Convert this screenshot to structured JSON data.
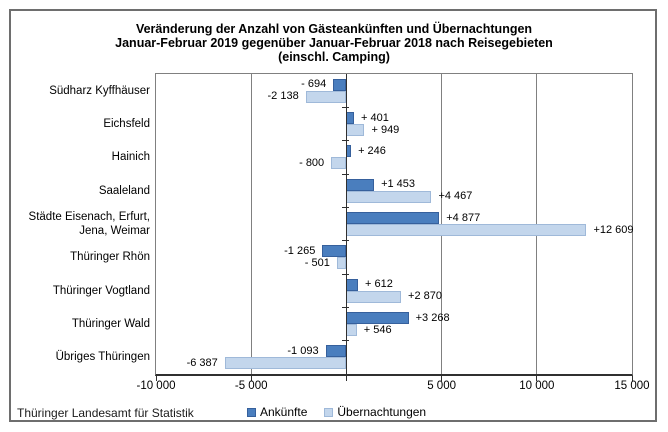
{
  "source": "Thüringer Landesamt für Statistik",
  "chart_data": {
    "type": "bar",
    "orientation": "horizontal",
    "title_lines": [
      "Veränderung der Anzahl von Gästeankünften und Übernachtungen",
      "Januar-Februar 2019 gegenüber Januar-Februar 2018 nach Reisegebieten",
      "(einschl. Camping)"
    ],
    "categories": [
      "Südharz Kyffhäuser",
      "Eichsfeld",
      "Hainich",
      "Saaleland",
      "Städte Eisenach, Erfurt,\nJena, Weimar",
      "Thüringer Rhön",
      "Thüringer Vogtland",
      "Thüringer Wald",
      "Übriges Thüringen"
    ],
    "series": [
      {
        "name": "Ankünfte",
        "color": "#4A7EBE",
        "border_color": "#36609C",
        "values": [
          -694,
          401,
          246,
          1453,
          4877,
          -1265,
          612,
          3268,
          -1093
        ],
        "data_labels": [
          "- 694",
          "+ 401",
          "+ 246",
          "+1 453",
          "+4 877",
          "-1 265",
          "+ 612",
          "+3 268",
          "-1 093"
        ]
      },
      {
        "name": "Übernachtungen",
        "color": "#C3D6EC",
        "border_color": "#9FB9D9",
        "values": [
          -2138,
          949,
          -800,
          4467,
          12609,
          -501,
          2870,
          546,
          -6387
        ],
        "data_labels": [
          "-2 138",
          "+ 949",
          "- 800",
          "+4 467",
          "+12 609",
          "- 501",
          "+2 870",
          "+ 546",
          "-6 387"
        ]
      }
    ],
    "xlim": [
      -10000,
      15000
    ],
    "x_ticks": [
      -10000,
      -5000,
      0,
      5000,
      10000,
      15000
    ],
    "x_tick_labels": [
      "-10 000",
      "-5 000",
      "",
      "5 000",
      "10 000",
      "15 000"
    ],
    "grid": true,
    "legend_position": "bottom"
  }
}
